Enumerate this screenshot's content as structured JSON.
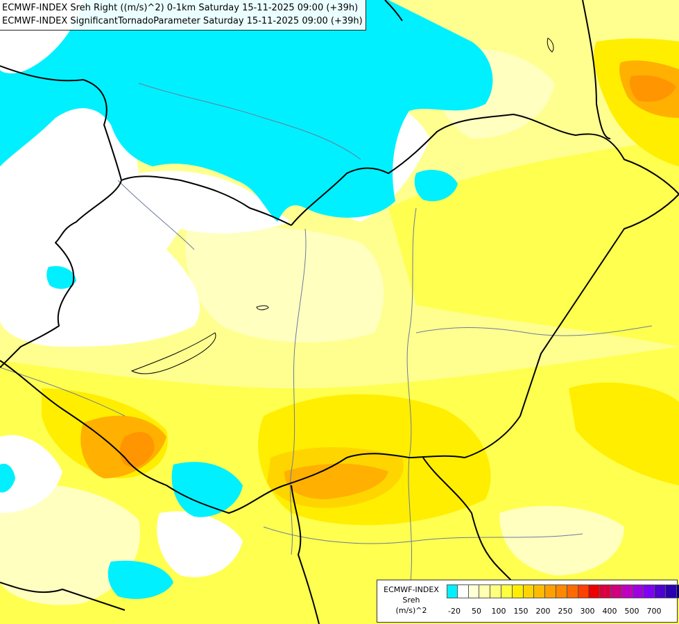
{
  "title": {
    "line1": "ECMWF-INDEX Sreh Right ((m/s)^2) 0-1km Saturday 15-11-2025 09:00 (+39h)",
    "line2": "ECMWF-INDEX SignificantTornadoParameter Saturday 15-11-2025 09:00 (+39h)"
  },
  "legend": {
    "title_line1": "ECMWF-INDEX",
    "title_line2": "Sreh",
    "title_line3": "(m/s)^2",
    "colors": [
      "#00f0ff",
      "#ffffff",
      "#ffffd8",
      "#ffffb0",
      "#ffff80",
      "#ffff40",
      "#ffee00",
      "#ffd500",
      "#ffbb00",
      "#ffa000",
      "#ff8800",
      "#ff6a00",
      "#ff4000",
      "#ee0000",
      "#d80040",
      "#d00080",
      "#c000c0",
      "#a000e0",
      "#8000f0",
      "#5000d0",
      "#2a00b0",
      "#08006c"
    ],
    "ticks": [
      "-20",
      "50",
      "100",
      "150",
      "200",
      "250",
      "300",
      "400",
      "500",
      "700"
    ]
  },
  "colors": {
    "cyan": "#00f0ff",
    "white": "#ffffff",
    "pale_yellow": "#ffffc0",
    "light_yellow": "#ffff90",
    "yellow": "#ffff50",
    "gold": "#ffee00",
    "amber": "#ffd500",
    "orange": "#ffb000",
    "dark_orange": "#ff9500",
    "border": "#000000",
    "river": "#6a7a9a"
  }
}
